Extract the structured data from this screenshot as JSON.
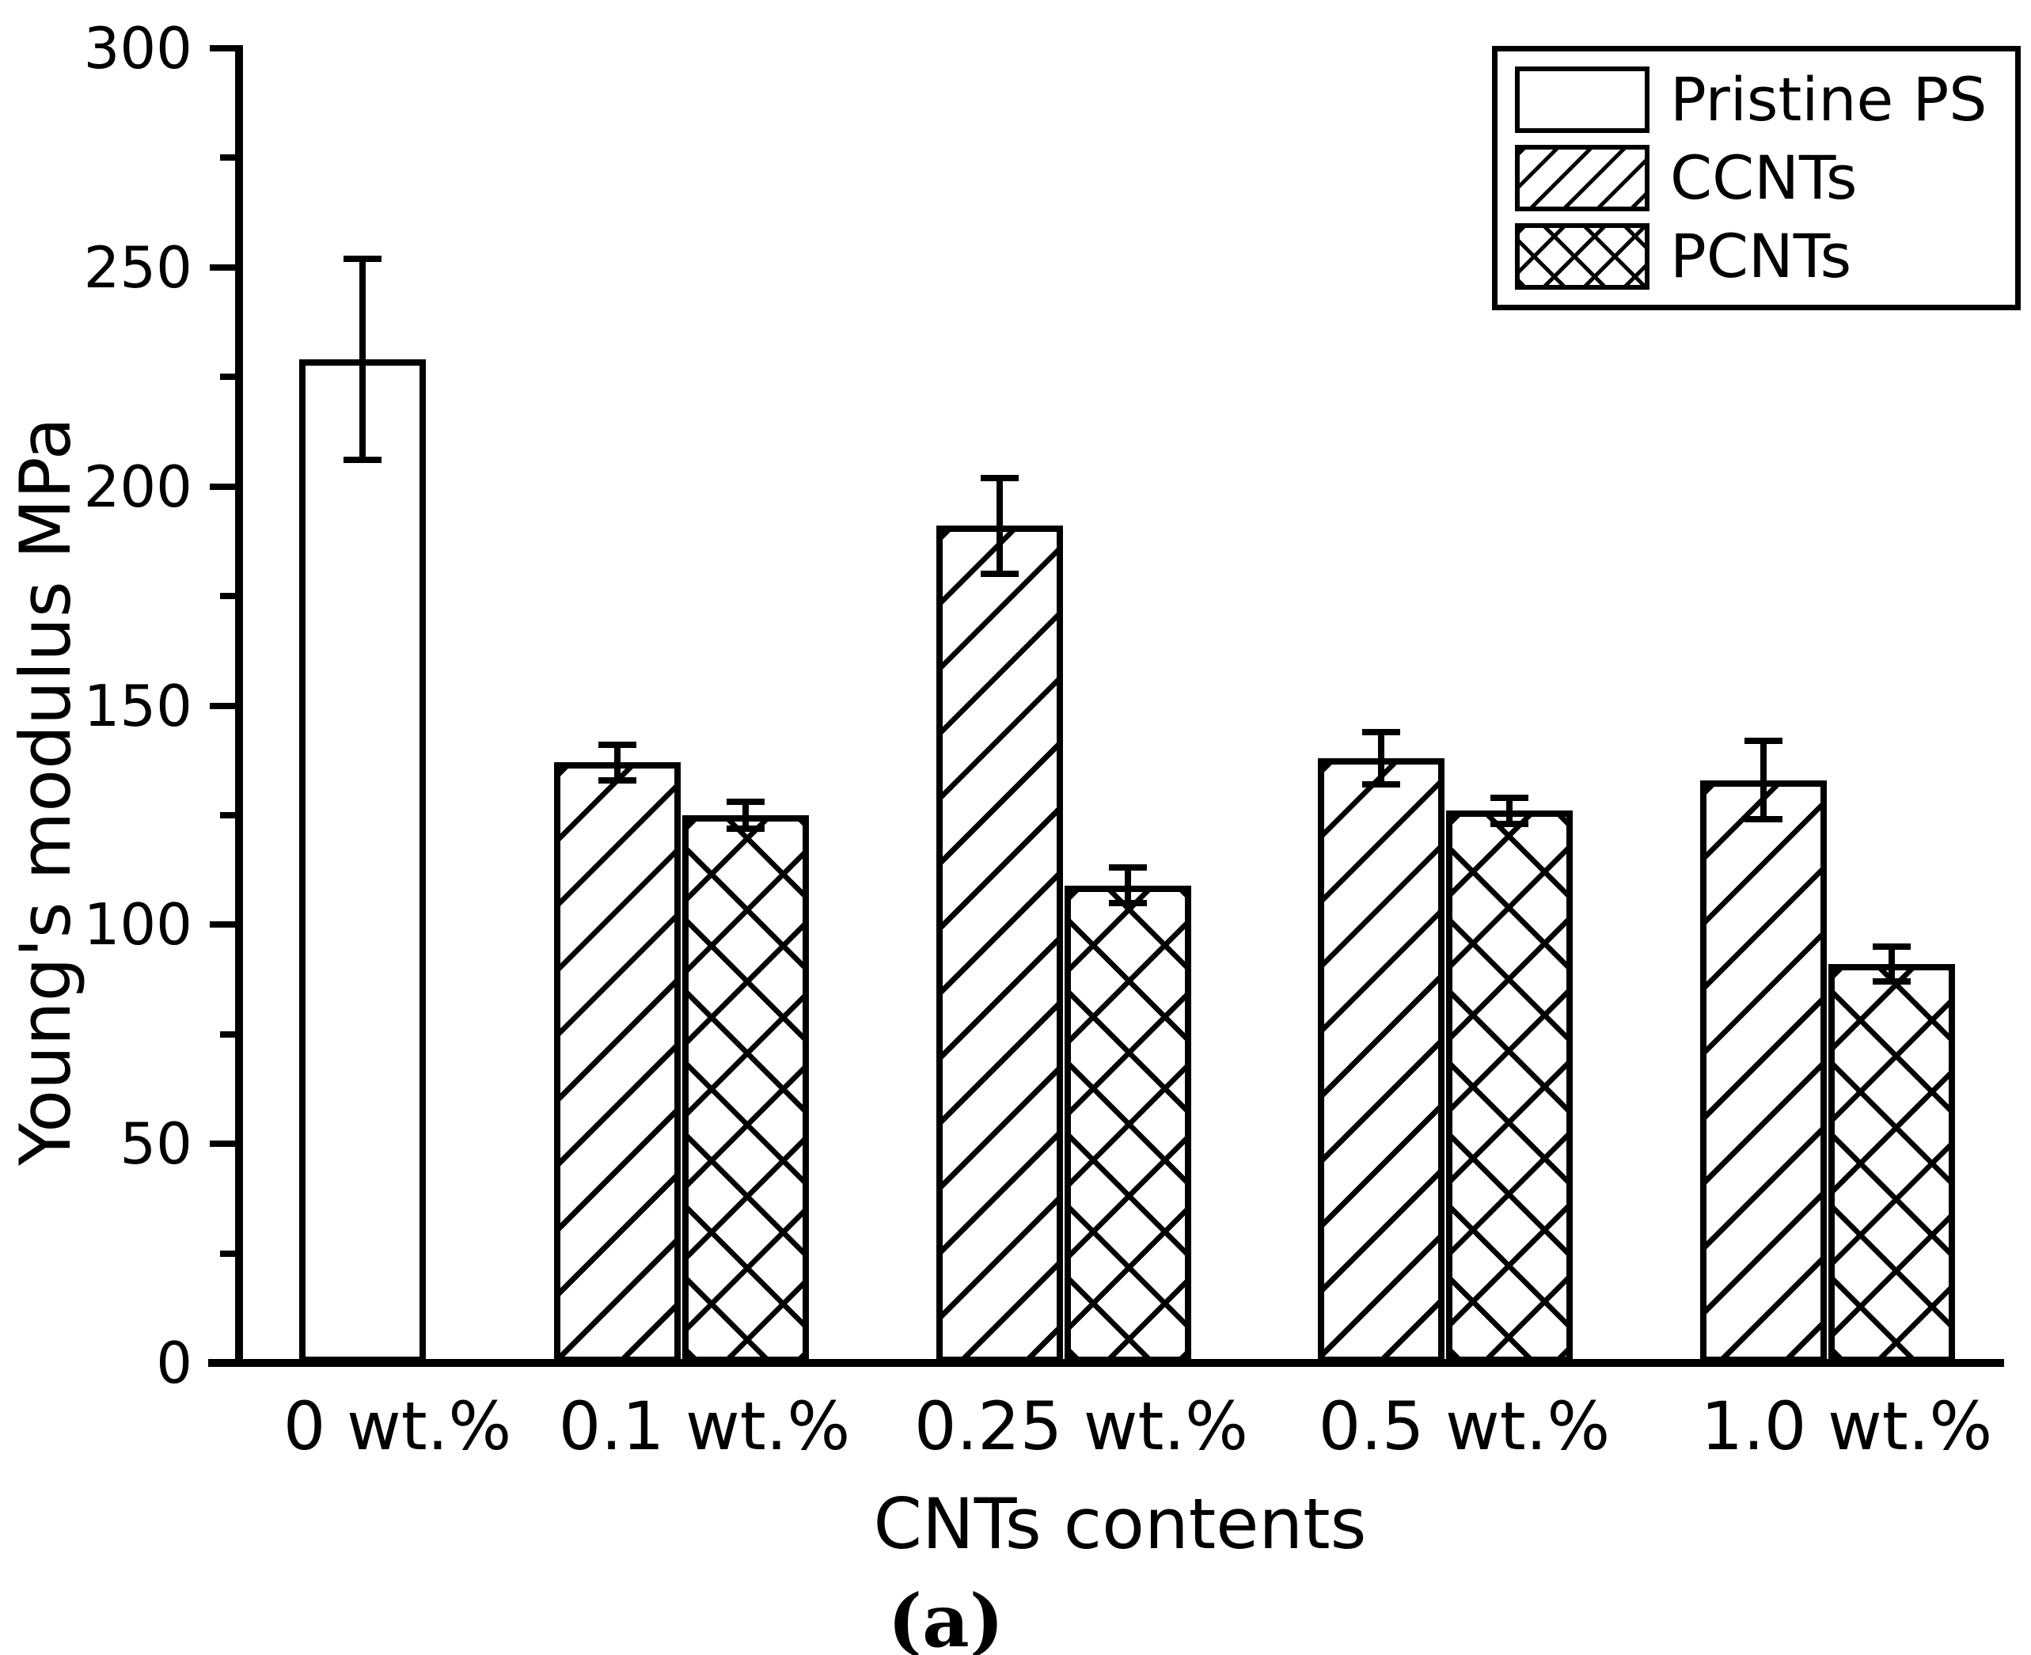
{
  "figure": {
    "caption": "(a)",
    "background_color": "#ffffff",
    "ink_color": "#000000"
  },
  "chart_data": {
    "type": "bar",
    "title": "",
    "xlabel": "CNTs contents",
    "ylabel": "Young's modulus MPa",
    "categories": [
      "0 wt.%",
      "0.1 wt.%",
      "0.25 wt.%",
      "0.5 wt.%",
      "1.0 wt.%"
    ],
    "series": [
      {
        "name": "Pristine PS",
        "pattern": "solid-white",
        "values": [
          229,
          null,
          null,
          null,
          null
        ],
        "errors": [
          23,
          null,
          null,
          null,
          null
        ]
      },
      {
        "name": "CCNTs",
        "pattern": "diagonal-hatch",
        "values": [
          null,
          137,
          191,
          138,
          133
        ],
        "errors": [
          null,
          4,
          11,
          6,
          9
        ]
      },
      {
        "name": "PCNTs",
        "pattern": "cross-hatch",
        "values": [
          null,
          125,
          109,
          126,
          91
        ],
        "errors": [
          null,
          3,
          4,
          3,
          4
        ]
      }
    ],
    "ylim": [
      0,
      300
    ],
    "y_major_ticks": [
      0,
      50,
      100,
      150,
      200,
      250,
      300
    ],
    "y_tick_labels": [
      "0",
      "50",
      "100",
      "150",
      "200",
      "250",
      "300"
    ],
    "y_minor_step": 25,
    "error_bars": true,
    "grid": false,
    "legend_position": "top-right",
    "bar_fill": "#ffffff",
    "bar_edge": "#000000"
  }
}
